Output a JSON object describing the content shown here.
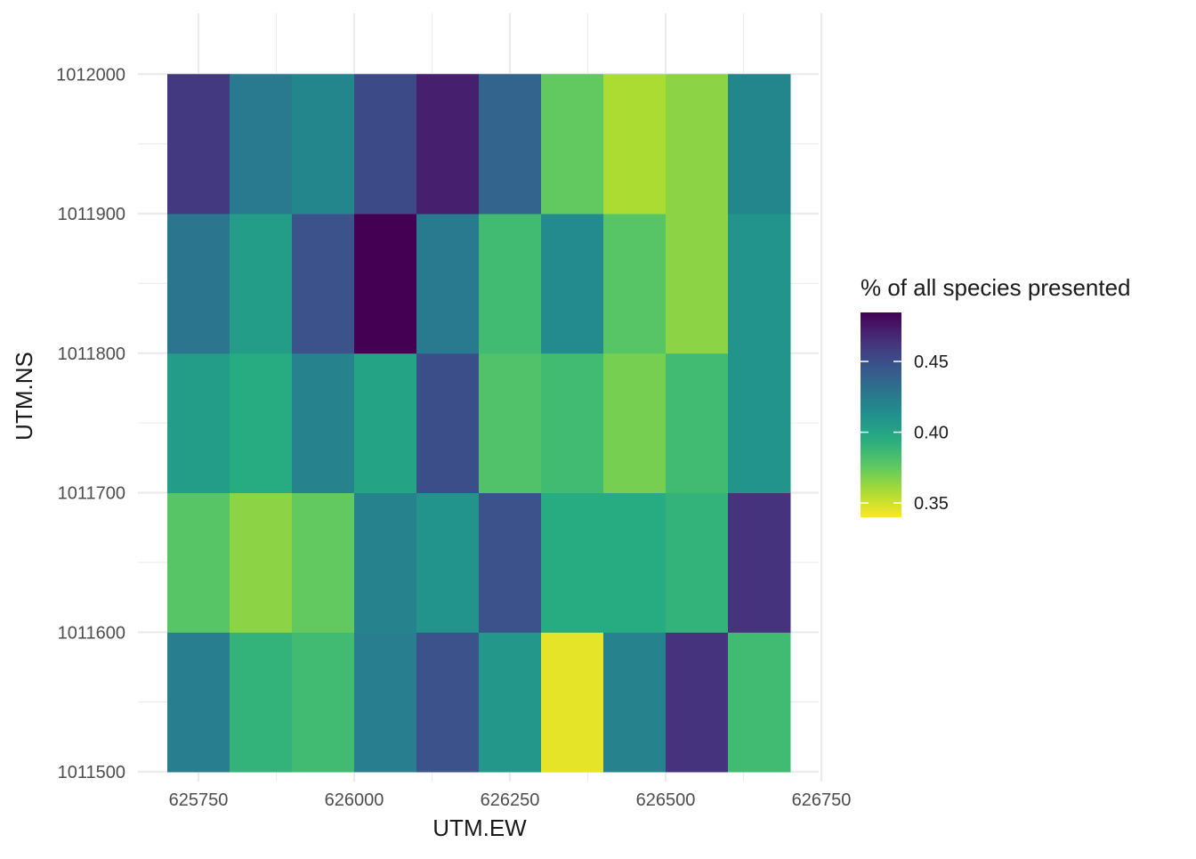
{
  "chart_data": {
    "type": "heatmap",
    "title": "",
    "xlabel": "UTM.EW",
    "ylabel": "UTM.NS",
    "xlim": [
      625700,
      626700
    ],
    "ylim": [
      1011500,
      1012020
    ],
    "x_ticks": [
      625750,
      626000,
      626250,
      626500,
      626750
    ],
    "x_tick_labels": [
      "625750",
      "626000",
      "626250",
      "626500",
      "626750"
    ],
    "y_ticks": [
      1011500,
      1011600,
      1011700,
      1011800,
      1011900,
      1012000
    ],
    "y_tick_labels": [
      "1011500",
      "1011600",
      "1011700",
      "1011800",
      "1011900",
      "1012000"
    ],
    "grid": true,
    "x_centers": [
      625750,
      625850,
      625950,
      626050,
      626150,
      626250,
      626350,
      626450,
      626550,
      626650
    ],
    "y_centers": [
      1011550,
      1011650,
      1011750,
      1011850,
      1011950
    ],
    "cell_width": 100,
    "cell_height": 100,
    "values": [
      [
        0.423,
        0.39,
        0.385,
        0.423,
        0.448,
        0.408,
        0.345,
        0.42,
        0.463,
        0.385
      ],
      [
        0.378,
        0.365,
        0.375,
        0.42,
        0.41,
        0.448,
        0.395,
        0.395,
        0.39,
        0.463
      ],
      [
        0.405,
        0.395,
        0.42,
        0.4,
        0.45,
        0.38,
        0.385,
        0.37,
        0.385,
        0.41
      ],
      [
        0.428,
        0.405,
        0.448,
        0.485,
        0.425,
        0.385,
        0.415,
        0.378,
        0.365,
        0.41
      ],
      [
        0.46,
        0.425,
        0.418,
        0.452,
        0.472,
        0.438,
        0.375,
        0.358,
        0.365,
        0.418
      ]
    ],
    "legend": {
      "title": "% of all species presented",
      "placement": "right",
      "min": 0.34,
      "max": 0.4846,
      "ticks": [
        0.35,
        0.4,
        0.45
      ],
      "tick_labels": [
        "0.35",
        "0.40",
        "0.45"
      ],
      "colormap": "viridis-reversed"
    },
    "colors": {
      "background": "#ffffff",
      "grid": "#ebebeb",
      "scale_low": "#FDE725",
      "scale_high": "#440154"
    }
  }
}
